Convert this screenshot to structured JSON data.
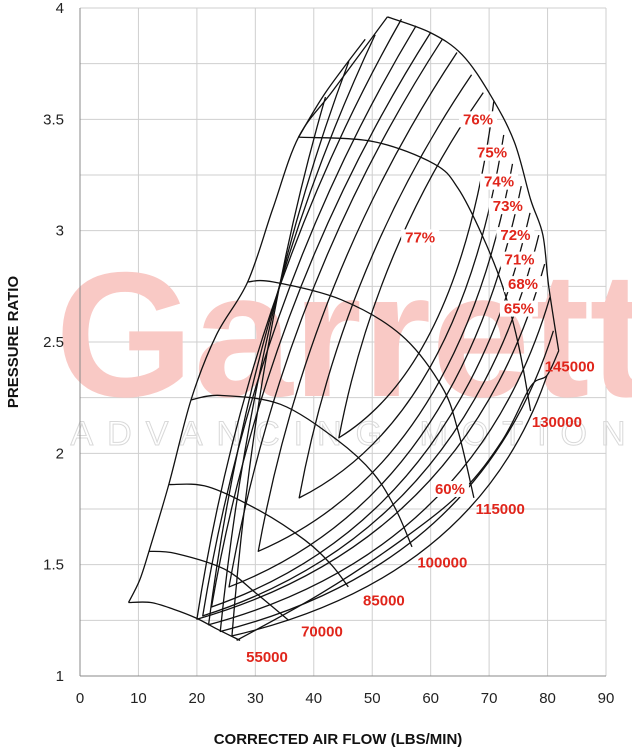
{
  "chart_data": {
    "type": "line",
    "title": "",
    "xlabel": "CORRECTED AIR FLOW (LBS/MIN)",
    "ylabel": "PRESSURE RATIO",
    "xlim": [
      0,
      90
    ],
    "ylim": [
      1,
      4
    ],
    "xticks": [
      0,
      10,
      20,
      30,
      40,
      50,
      60,
      70,
      80,
      90
    ],
    "yticks": [
      1,
      1.5,
      2,
      2.5,
      3,
      3.5,
      4
    ],
    "ygrid_step": 0.25,
    "xgrid_step": 10,
    "grid": true,
    "colors": {
      "lines": "#111111",
      "labels": "#e0251b",
      "grid": "#cfcfcf",
      "watermark": "#f9c9c5"
    },
    "watermark": {
      "brand": "Garrett",
      "tagline": "ADVANCING MOTION"
    },
    "surge_line": [
      [
        8.3,
        1.33
      ],
      [
        10.2,
        1.43
      ],
      [
        11.8,
        1.56
      ],
      [
        15.2,
        1.86
      ],
      [
        19,
        2.24
      ],
      [
        23.3,
        2.53
      ],
      [
        28.7,
        2.77
      ],
      [
        33,
        3.1
      ],
      [
        37.4,
        3.42
      ],
      [
        43.3,
        3.63
      ],
      [
        52.6,
        3.96
      ]
    ],
    "surge_extension": [
      [
        37.4,
        3.42
      ],
      [
        42,
        3.62
      ],
      [
        48.8,
        3.86
      ]
    ],
    "choke_boundary": [
      [
        26.8,
        1.16
      ],
      [
        41.2,
        1.37
      ],
      [
        55,
        1.61
      ],
      [
        65.4,
        1.83
      ],
      [
        72.3,
        2.06
      ],
      [
        77.1,
        2.3
      ],
      [
        79.9,
        2.35
      ],
      [
        81.9,
        2.46
      ]
    ],
    "speed_lines": [
      {
        "label": "55000",
        "label_at": [
          32,
          1.085
        ],
        "points": [
          [
            8.3,
            1.33
          ],
          [
            12.1,
            1.33
          ],
          [
            16,
            1.3
          ],
          [
            19.9,
            1.26
          ],
          [
            23.5,
            1.21
          ],
          [
            27.4,
            1.16
          ]
        ]
      },
      {
        "label": "70000",
        "label_at": [
          41.4,
          1.2
        ],
        "points": [
          [
            11.8,
            1.56
          ],
          [
            16.4,
            1.55
          ],
          [
            24.7,
            1.48
          ],
          [
            30.2,
            1.37
          ],
          [
            35.7,
            1.25
          ]
        ]
      },
      {
        "label": "85000",
        "label_at": [
          52,
          1.34
        ],
        "points": [
          [
            15.2,
            1.86
          ],
          [
            21.9,
            1.85
          ],
          [
            30.9,
            1.74
          ],
          [
            38.5,
            1.61
          ],
          [
            43,
            1.5
          ],
          [
            45.9,
            1.4
          ]
        ]
      },
      {
        "label": "100000",
        "label_at": [
          62,
          1.51
        ],
        "points": [
          [
            19,
            2.24
          ],
          [
            24,
            2.26
          ],
          [
            34.3,
            2.22
          ],
          [
            44,
            2.06
          ],
          [
            50.2,
            1.91
          ],
          [
            54,
            1.75
          ],
          [
            56.8,
            1.58
          ]
        ]
      },
      {
        "label": "115000",
        "label_at": [
          71.9,
          1.75
        ],
        "points": [
          [
            28.7,
            2.77
          ],
          [
            33,
            2.77
          ],
          [
            44.7,
            2.69
          ],
          [
            55,
            2.53
          ],
          [
            61.9,
            2.3
          ],
          [
            64.7,
            2.1
          ],
          [
            67.4,
            1.8
          ]
        ]
      },
      {
        "label": "130000",
        "label_at": [
          81.6,
          2.14
        ],
        "points": [
          [
            37.4,
            3.42
          ],
          [
            50.2,
            3.4
          ],
          [
            60.6,
            3.3
          ],
          [
            64.7,
            3.19
          ],
          [
            68.8,
            2.98
          ],
          [
            72.3,
            2.75
          ],
          [
            75,
            2.49
          ],
          [
            77.1,
            2.19
          ]
        ]
      },
      {
        "label": "145000",
        "label_at": [
          83.8,
          2.39
        ],
        "points": [
          [
            52.6,
            3.96
          ],
          [
            59.9,
            3.89
          ],
          [
            65.4,
            3.79
          ],
          [
            70.2,
            3.61
          ],
          [
            74.3,
            3.4
          ],
          [
            77.1,
            3.14
          ],
          [
            79.2,
            2.98
          ],
          [
            80.2,
            2.75
          ],
          [
            81.9,
            2.46
          ]
        ]
      }
    ],
    "efficiency_contours": [
      {
        "label": "77%",
        "label_at": [
          58.2,
          2.97
        ],
        "tip": [
          44.3,
          2.07
        ],
        "upper_end": [
          69,
          3.62
        ],
        "lower_end": [
          70.8,
          3.58
        ]
      },
      {
        "label": "76%",
        "label_at": [
          68.1,
          3.5
        ],
        "tip": [
          37.5,
          1.8
        ],
        "upper_end": [
          67,
          3.7
        ],
        "lower_end": [
          72.5,
          3.43
        ]
      },
      {
        "label": "75%",
        "label_at": [
          70.5,
          3.35
        ],
        "tip": [
          30.5,
          1.56
        ],
        "upper_end": [
          64.5,
          3.8
        ],
        "lower_end": [
          74,
          3.3
        ]
      },
      {
        "label": "74%",
        "label_at": [
          71.7,
          3.22
        ],
        "tip": [
          25.5,
          1.4
        ],
        "upper_end": [
          62,
          3.86
        ],
        "lower_end": [
          75.5,
          3.2
        ]
      },
      {
        "label": "73%",
        "label_at": [
          73.2,
          3.11
        ],
        "tip": [
          22.5,
          1.31
        ],
        "upper_end": [
          60,
          3.89
        ],
        "lower_end": [
          77,
          3.08
        ]
      },
      {
        "label": "72%",
        "label_at": [
          74.5,
          2.98
        ],
        "tip": [
          21,
          1.27
        ],
        "upper_end": [
          57.5,
          3.92
        ],
        "lower_end": [
          78.5,
          2.98
        ]
      },
      {
        "label": "71%",
        "label_at": [
          75.2,
          2.87
        ],
        "tip": [
          20,
          1.255
        ],
        "upper_end": [
          55,
          3.95
        ],
        "lower_end": [
          79.5,
          2.85
        ]
      },
      {
        "label": "68%",
        "label_at": [
          75.8,
          2.76
        ],
        "tip": [
          22,
          1.23
        ],
        "upper_end": [
          50.5,
          3.88
        ],
        "lower_end": [
          80.4,
          2.7
        ]
      },
      {
        "label": "65%",
        "label_at": [
          75.1,
          2.65
        ],
        "tip": [
          24,
          1.2
        ],
        "upper_end": [
          46,
          3.76
        ],
        "lower_end": [
          81,
          2.55
        ]
      },
      {
        "label": "60%",
        "label_at": [
          63.3,
          1.84
        ],
        "tip": [
          26,
          1.18
        ],
        "upper_end": [
          42,
          3.6
        ],
        "lower_end": [
          79.9,
          2.35
        ]
      }
    ]
  }
}
